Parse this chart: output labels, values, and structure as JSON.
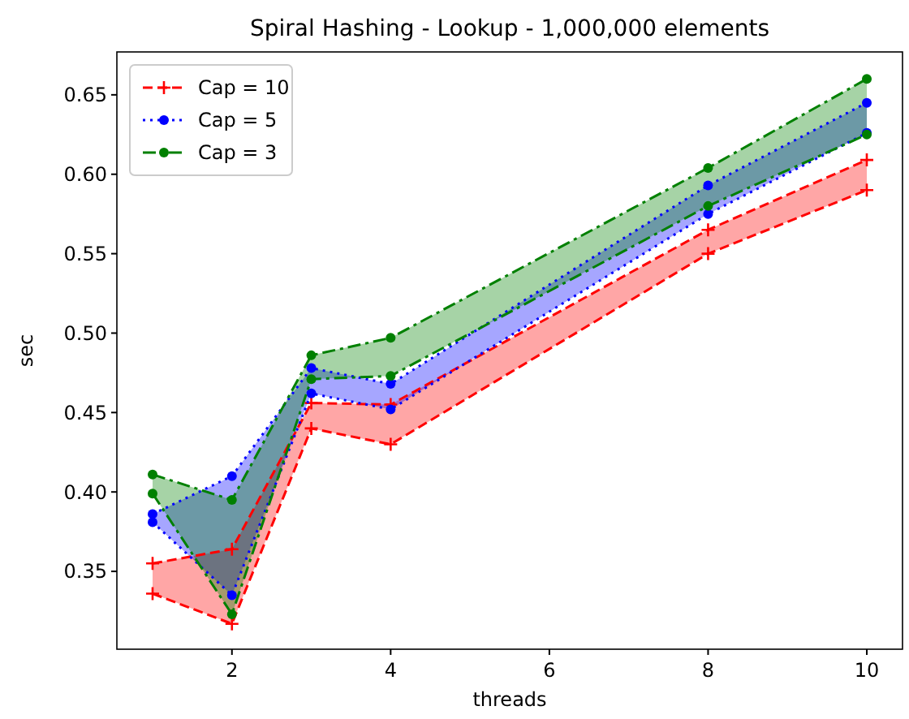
{
  "chart_data": {
    "type": "line",
    "title": "Spiral Hashing - Lookup - 1,000,000 elements",
    "xlabel": "threads",
    "ylabel": "sec",
    "x": [
      1,
      2,
      3,
      4,
      8,
      10
    ],
    "series": [
      {
        "name": "Cap = 10",
        "color": "#ff0000",
        "marker": "cross",
        "line_style": "dashed",
        "values": [
          0.355,
          0.364,
          0.456,
          0.455,
          0.565,
          0.609
        ],
        "lower": [
          0.336,
          0.317,
          0.44,
          0.43,
          0.55,
          0.59
        ],
        "upper": [
          0.355,
          0.364,
          0.456,
          0.455,
          0.565,
          0.609
        ]
      },
      {
        "color": "#ff0000",
        "marker": "cross",
        "line_style": "dashed",
        "values": [
          0.336,
          0.317,
          0.44,
          0.43,
          0.55,
          0.59
        ]
      },
      {
        "name": "Cap = 5",
        "color": "#0000ff",
        "marker": "circle",
        "line_style": "dotted",
        "values": [
          0.386,
          0.41,
          0.478,
          0.468,
          0.593,
          0.645
        ],
        "lower": [
          0.381,
          0.335,
          0.462,
          0.452,
          0.575,
          0.626
        ],
        "upper": [
          0.386,
          0.41,
          0.478,
          0.468,
          0.593,
          0.645
        ]
      },
      {
        "color": "#0000ff",
        "marker": "circle",
        "line_style": "dotted",
        "values": [
          0.381,
          0.335,
          0.462,
          0.452,
          0.575,
          0.626
        ]
      },
      {
        "name": "Cap = 3",
        "color": "#008000",
        "marker": "circle",
        "line_style": "dashdot",
        "values": [
          0.411,
          0.395,
          0.486,
          0.497,
          0.604,
          0.66
        ],
        "lower": [
          0.399,
          0.323,
          0.471,
          0.473,
          0.58,
          0.625
        ],
        "upper": [
          0.411,
          0.395,
          0.486,
          0.497,
          0.604,
          0.66
        ]
      },
      {
        "color": "#008000",
        "marker": "circle",
        "line_style": "dashdot",
        "values": [
          0.399,
          0.323,
          0.471,
          0.473,
          0.58,
          0.625
        ]
      }
    ],
    "xlim": [
      0.55,
      10.45
    ],
    "xticks": [
      2,
      4,
      6,
      8,
      10
    ],
    "ylim": [
      0.301,
      0.677
    ],
    "yticks": [
      0.35,
      {
        "value": 0.4,
        "label": "0.40"
      },
      0.45,
      {
        "value": 0.5,
        "label": "0.50"
      },
      0.55,
      {
        "value": 0.6,
        "label": "0.60"
      },
      0.65
    ],
    "legend": "top left"
  }
}
